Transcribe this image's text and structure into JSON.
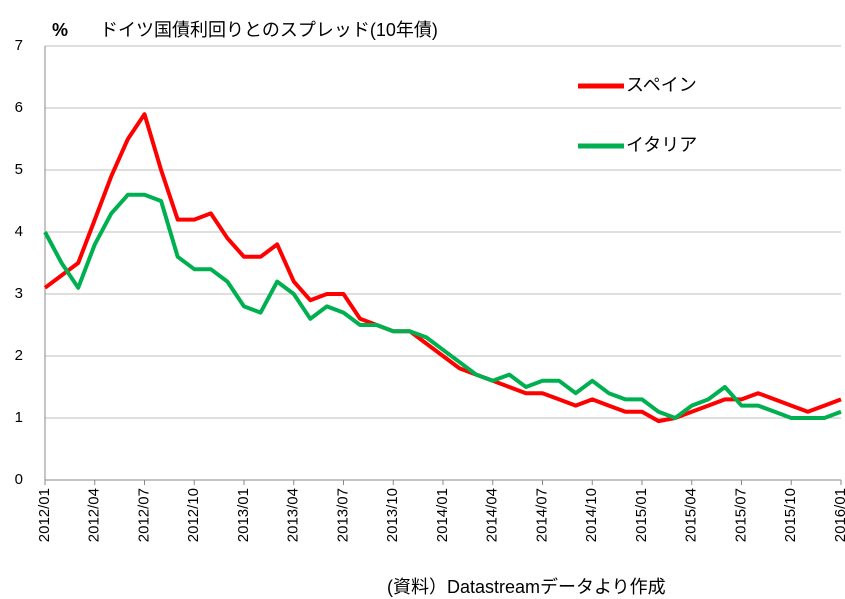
{
  "chart_data": {
    "type": "line",
    "title": "ドイツ国債利回りとのスプレッド(10年債)",
    "y_label": "%",
    "source": "(資料）Datastreamデータより作成",
    "x": [
      "2012/01",
      "2012/02",
      "2012/03",
      "2012/04",
      "2012/05",
      "2012/06",
      "2012/07",
      "2012/08",
      "2012/09",
      "2012/10",
      "2012/11",
      "2012/12",
      "2013/01",
      "2013/02",
      "2013/03",
      "2013/04",
      "2013/05",
      "2013/06",
      "2013/07",
      "2013/08",
      "2013/09",
      "2013/10",
      "2013/11",
      "2013/12",
      "2014/01",
      "2014/02",
      "2014/03",
      "2014/04",
      "2014/05",
      "2014/06",
      "2014/07",
      "2014/08",
      "2014/09",
      "2014/10",
      "2014/11",
      "2014/12",
      "2015/01",
      "2015/02",
      "2015/03",
      "2015/04",
      "2015/05",
      "2015/06",
      "2015/07",
      "2015/08",
      "2015/09",
      "2015/10",
      "2015/11",
      "2015/12",
      "2016/01"
    ],
    "series": [
      {
        "name": "スペイン",
        "color": "#ff0000",
        "values": [
          3.1,
          3.3,
          3.5,
          4.2,
          4.9,
          5.5,
          5.9,
          5.0,
          4.2,
          4.2,
          4.3,
          3.9,
          3.6,
          3.6,
          3.8,
          3.2,
          2.9,
          3.0,
          3.0,
          2.6,
          2.5,
          2.4,
          2.4,
          2.2,
          2.0,
          1.8,
          1.7,
          1.6,
          1.5,
          1.4,
          1.4,
          1.3,
          1.2,
          1.3,
          1.2,
          1.1,
          1.1,
          0.95,
          1.0,
          1.1,
          1.2,
          1.3,
          1.3,
          1.4,
          1.3,
          1.2,
          1.1,
          1.2,
          1.3
        ]
      },
      {
        "name": "イタリア",
        "color": "#00b050",
        "values": [
          4.0,
          3.5,
          3.1,
          3.8,
          4.3,
          4.6,
          4.6,
          4.5,
          3.6,
          3.4,
          3.4,
          3.2,
          2.8,
          2.7,
          3.2,
          3.0,
          2.6,
          2.8,
          2.7,
          2.5,
          2.5,
          2.4,
          2.4,
          2.3,
          2.1,
          1.9,
          1.7,
          1.6,
          1.7,
          1.5,
          1.6,
          1.6,
          1.4,
          1.6,
          1.4,
          1.3,
          1.3,
          1.1,
          1.0,
          1.2,
          1.3,
          1.5,
          1.2,
          1.2,
          1.1,
          1.0,
          1.0,
          1.0,
          1.1
        ]
      }
    ],
    "xlim": [
      "2012/01",
      "2016/01"
    ],
    "xticks": [
      "2012/01",
      "2012/04",
      "2012/07",
      "2012/10",
      "2013/01",
      "2013/04",
      "2013/07",
      "2013/10",
      "2014/01",
      "2014/04",
      "2014/07",
      "2014/10",
      "2015/01",
      "2015/04",
      "2015/07",
      "2015/10",
      "2016/01"
    ],
    "ylim": [
      0,
      7
    ],
    "yticks": [
      0,
      1,
      2,
      3,
      4,
      5,
      6,
      7
    ],
    "grid": true,
    "legend": "upper right"
  }
}
